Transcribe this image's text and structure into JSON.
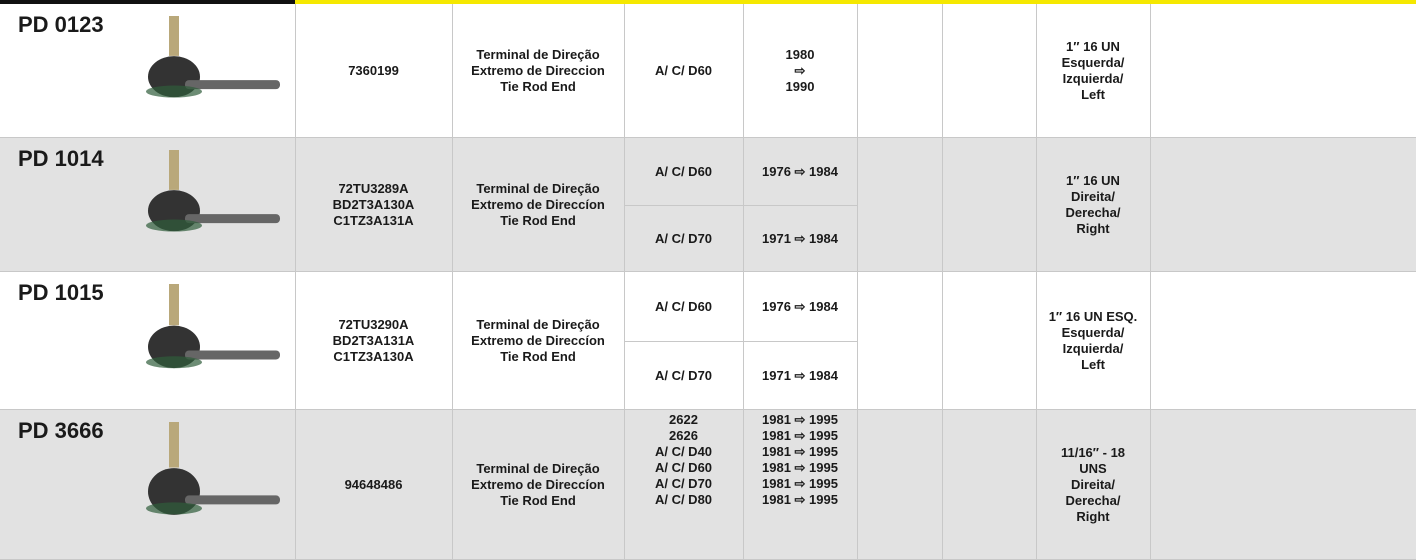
{
  "rows": [
    {
      "code": "PD 0123",
      "oem": [
        "7360199"
      ],
      "description": [
        "Terminal de Direção",
        "Extremo de Direccion",
        "Tie Rod End"
      ],
      "applications": [
        {
          "app": "A/ C/ D60",
          "years": [
            "1980",
            "⇨",
            "1990"
          ]
        }
      ],
      "spec": [
        "1″ 16 UN",
        "Esquerda/",
        "Izquierda/",
        "Left"
      ]
    },
    {
      "code": "PD 1014",
      "oem": [
        "72TU3289A",
        "BD2T3A130A",
        "C1TZ3A131A"
      ],
      "description": [
        "Terminal de Direção",
        "Extremo de Direccíon",
        "Tie Rod End"
      ],
      "applications": [
        {
          "app": "A/ C/ D60",
          "years": [
            "1976 ⇨ 1984"
          ]
        },
        {
          "app": "A/ C/ D70",
          "years": [
            "1971 ⇨ 1984"
          ]
        }
      ],
      "spec": [
        "1″ 16 UN",
        "Direita/",
        "Derecha/",
        "Right"
      ]
    },
    {
      "code": "PD 1015",
      "oem": [
        "72TU3290A",
        "BD2T3A131A",
        "C1TZ3A130A"
      ],
      "description": [
        "Terminal de Direção",
        "Extremo de Direccíon",
        "Tie Rod End"
      ],
      "applications": [
        {
          "app": "A/ C/ D60",
          "years": [
            "1976 ⇨ 1984"
          ]
        },
        {
          "app": "A/ C/ D70",
          "years": [
            "1971 ⇨ 1984"
          ]
        }
      ],
      "spec": [
        "1″ 16 UN ESQ.",
        "Esquerda/",
        "Izquierda/",
        "Left"
      ]
    },
    {
      "code": "PD 3666",
      "oem": [
        "94648486"
      ],
      "description": [
        "Terminal de Direção",
        "Extremo de Direccíon",
        "Tie Rod End"
      ],
      "applications": [
        {
          "app": "2622",
          "years": [
            "1981 ⇨ 1995"
          ]
        },
        {
          "app": "2626",
          "years": [
            "1981 ⇨ 1995"
          ]
        },
        {
          "app": "A/ C/ D40",
          "years": [
            "1981 ⇨ 1995"
          ]
        },
        {
          "app": "A/ C/ D60",
          "years": [
            "1981 ⇨ 1995"
          ]
        },
        {
          "app": "A/ C/ D70",
          "years": [
            "1981 ⇨ 1995"
          ]
        },
        {
          "app": "A/ C/ D80",
          "years": [
            "1981 ⇨ 1995"
          ]
        }
      ],
      "spec": [
        "11/16″ - 18",
        "UNS",
        "Direita/",
        "Derecha/",
        "Right"
      ]
    }
  ]
}
